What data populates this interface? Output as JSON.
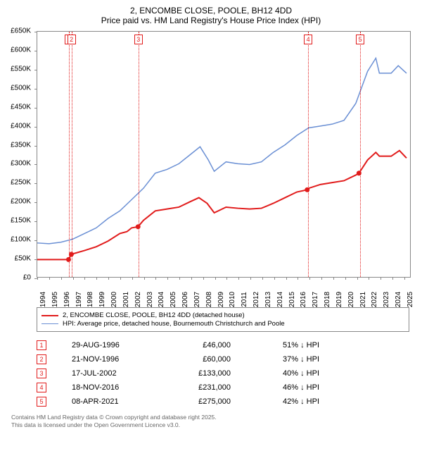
{
  "title": "2, ENCOMBE CLOSE, POOLE, BH12 4DD",
  "subtitle": "Price paid vs. HM Land Registry's House Price Index (HPI)",
  "chart": {
    "type": "line",
    "background_color": "#ffffff",
    "border_color": "#888888",
    "x_years": [
      1994,
      1995,
      1996,
      1997,
      1998,
      1999,
      2000,
      2001,
      2002,
      2003,
      2004,
      2005,
      2006,
      2007,
      2008,
      2009,
      2010,
      2011,
      2012,
      2013,
      2014,
      2015,
      2016,
      2017,
      2018,
      2019,
      2020,
      2021,
      2022,
      2023,
      2024,
      2025
    ],
    "xlim": [
      1994,
      2025.6
    ],
    "ylim": [
      0,
      650000
    ],
    "ytick_step": 50000,
    "yticks": [
      0,
      50000,
      100000,
      150000,
      200000,
      250000,
      300000,
      350000,
      400000,
      450000,
      500000,
      550000,
      600000,
      650000
    ],
    "ytick_labels": [
      "£0",
      "£50K",
      "£100K",
      "£150K",
      "£200K",
      "£250K",
      "£300K",
      "£350K",
      "£400K",
      "£450K",
      "£500K",
      "£550K",
      "£600K",
      "£650K"
    ],
    "label_fontsize": 10,
    "title_fontsize": 12,
    "series": [
      {
        "id": "price_paid",
        "label": "2, ENCOMBE CLOSE, POOLE, BH12 4DD (detached house)",
        "color": "#e11b1b",
        "line_width": 2,
        "data": [
          [
            1994,
            46000
          ],
          [
            1996.65,
            46000
          ],
          [
            1996.89,
            60000
          ],
          [
            1998,
            70000
          ],
          [
            1999,
            80000
          ],
          [
            2000,
            95000
          ],
          [
            2001,
            115000
          ],
          [
            2001.6,
            120000
          ],
          [
            2002,
            130000
          ],
          [
            2002.54,
            133000
          ],
          [
            2003,
            150000
          ],
          [
            2004,
            175000
          ],
          [
            2005,
            180000
          ],
          [
            2006,
            185000
          ],
          [
            2007,
            200000
          ],
          [
            2007.7,
            210000
          ],
          [
            2008.4,
            195000
          ],
          [
            2009,
            170000
          ],
          [
            2010,
            185000
          ],
          [
            2011,
            182000
          ],
          [
            2012,
            180000
          ],
          [
            2013,
            182000
          ],
          [
            2014,
            195000
          ],
          [
            2015,
            210000
          ],
          [
            2016,
            225000
          ],
          [
            2016.88,
            231000
          ],
          [
            2017,
            235000
          ],
          [
            2018,
            245000
          ],
          [
            2019,
            250000
          ],
          [
            2020,
            255000
          ],
          [
            2021,
            270000
          ],
          [
            2021.27,
            275000
          ],
          [
            2022,
            310000
          ],
          [
            2022.7,
            330000
          ],
          [
            2023,
            320000
          ],
          [
            2024,
            320000
          ],
          [
            2024.7,
            335000
          ],
          [
            2025.3,
            315000
          ]
        ],
        "sale_markers": [
          {
            "x": 1996.65,
            "y": 46000
          },
          {
            "x": 1996.89,
            "y": 60000
          },
          {
            "x": 2002.54,
            "y": 133000
          },
          {
            "x": 2016.88,
            "y": 231000
          },
          {
            "x": 2021.27,
            "y": 275000
          }
        ]
      },
      {
        "id": "hpi",
        "label": "HPI: Average price, detached house, Bournemouth Christchurch and Poole",
        "color": "#6a8fd4",
        "line_width": 1.5,
        "data": [
          [
            1994,
            90000
          ],
          [
            1995,
            88000
          ],
          [
            1996,
            92000
          ],
          [
            1997,
            100000
          ],
          [
            1998,
            115000
          ],
          [
            1999,
            130000
          ],
          [
            2000,
            155000
          ],
          [
            2001,
            175000
          ],
          [
            2002,
            205000
          ],
          [
            2003,
            235000
          ],
          [
            2004,
            275000
          ],
          [
            2005,
            285000
          ],
          [
            2006,
            300000
          ],
          [
            2007,
            325000
          ],
          [
            2007.8,
            345000
          ],
          [
            2008.5,
            310000
          ],
          [
            2009,
            280000
          ],
          [
            2010,
            305000
          ],
          [
            2011,
            300000
          ],
          [
            2012,
            298000
          ],
          [
            2013,
            305000
          ],
          [
            2014,
            330000
          ],
          [
            2015,
            350000
          ],
          [
            2016,
            375000
          ],
          [
            2017,
            395000
          ],
          [
            2018,
            400000
          ],
          [
            2019,
            405000
          ],
          [
            2020,
            415000
          ],
          [
            2021,
            460000
          ],
          [
            2022,
            545000
          ],
          [
            2022.7,
            580000
          ],
          [
            2023,
            540000
          ],
          [
            2024,
            540000
          ],
          [
            2024.6,
            560000
          ],
          [
            2025.3,
            540000
          ]
        ]
      }
    ],
    "event_markers": [
      {
        "n": "1",
        "x": 1996.65,
        "color": "#e11b1b"
      },
      {
        "n": "2",
        "x": 1996.89,
        "color": "#e11b1b"
      },
      {
        "n": "3",
        "x": 2002.54,
        "color": "#e11b1b"
      },
      {
        "n": "4",
        "x": 2016.88,
        "color": "#e11b1b"
      },
      {
        "n": "5",
        "x": 2021.27,
        "color": "#e11b1b"
      }
    ]
  },
  "legend": {
    "border_color": "#888888"
  },
  "events": [
    {
      "n": "1",
      "date": "29-AUG-1996",
      "price": "£46,000",
      "diff": "51% ↓ HPI",
      "color": "#e11b1b"
    },
    {
      "n": "2",
      "date": "21-NOV-1996",
      "price": "£60,000",
      "diff": "37% ↓ HPI",
      "color": "#e11b1b"
    },
    {
      "n": "3",
      "date": "17-JUL-2002",
      "price": "£133,000",
      "diff": "40% ↓ HPI",
      "color": "#e11b1b"
    },
    {
      "n": "4",
      "date": "18-NOV-2016",
      "price": "£231,000",
      "diff": "46% ↓ HPI",
      "color": "#e11b1b"
    },
    {
      "n": "5",
      "date": "08-APR-2021",
      "price": "£275,000",
      "diff": "42% ↓ HPI",
      "color": "#e11b1b"
    }
  ],
  "footer_line1": "Contains HM Land Registry data © Crown copyright and database right 2025.",
  "footer_line2": "This data is licensed under the Open Government Licence v3.0."
}
